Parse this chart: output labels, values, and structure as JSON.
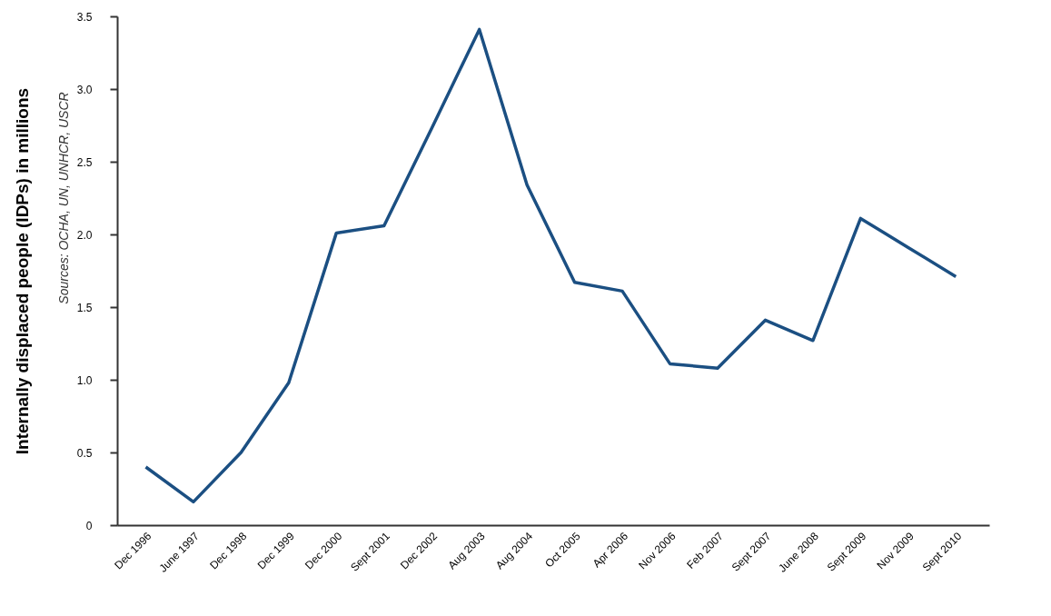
{
  "chart_data": {
    "type": "line",
    "ylabel": "Internally displaced people (IDPs) in millions",
    "annotations": [
      "Sources: OCHA, UN, UNHCR, USCR"
    ],
    "categories": [
      "Dec 1996",
      "June 1997",
      "Dec 1998",
      "Dec 1999",
      "Dec 2000",
      "Sept 2001",
      "Dec 2002",
      "Aug 2003",
      "Aug 2004",
      "Oct 2005",
      "Apr 2006",
      "Nov 2006",
      "Feb 2007",
      "Sept 2007",
      "June 2008",
      "Sept 2009",
      "Nov 2009",
      "Sept 2010"
    ],
    "series": [
      {
        "color": "#1b4f82",
        "values": [
          0.4,
          0.16,
          0.5,
          0.98,
          2.01,
          2.06,
          2.73,
          3.41,
          2.34,
          1.67,
          1.61,
          1.11,
          1.08,
          1.41,
          1.27,
          2.11,
          1.91,
          1.71
        ]
      }
    ],
    "ylim": [
      0,
      3.5
    ],
    "yticks": [
      0,
      {
        "value": 0.5,
        "label": "0.5"
      },
      {
        "value": 1,
        "label": "1.0"
      },
      {
        "value": 1.5,
        "label": "1.5"
      },
      {
        "value": 2,
        "label": "2.0"
      },
      {
        "value": 2.5,
        "label": "2.5"
      },
      {
        "value": 3,
        "label": "3.0"
      },
      {
        "value": 3.5,
        "label": "3.5"
      }
    ],
    "grid": false,
    "marker": "none",
    "line_style": "solid"
  }
}
